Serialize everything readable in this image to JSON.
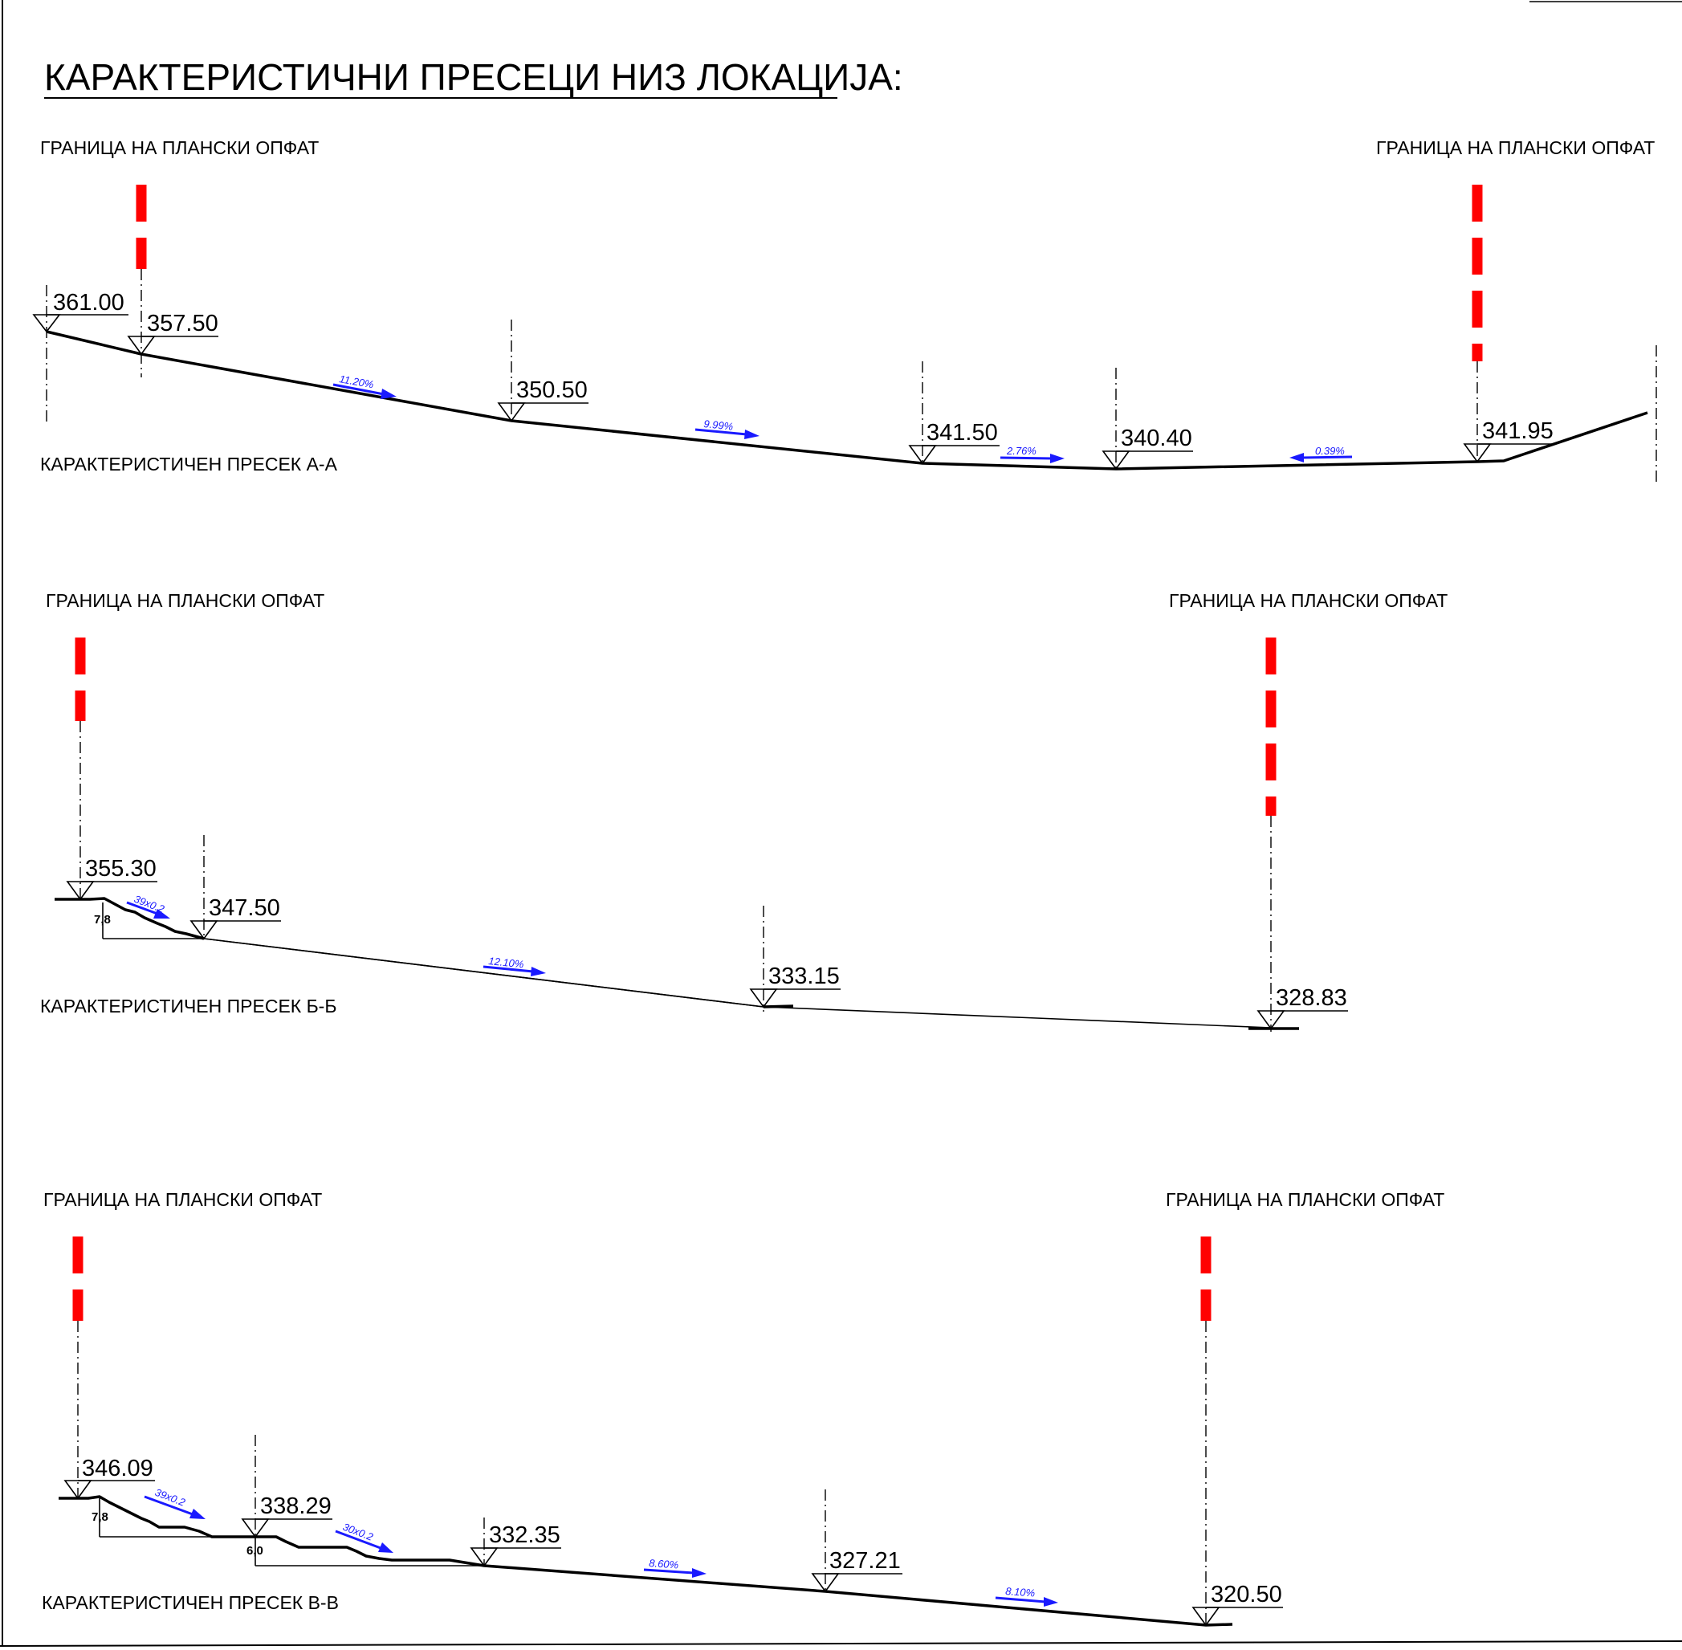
{
  "title": "КАРАКТЕРИСТИЧНИ ПРЕСЕЦИ НИЗ ЛОКАЦИЈА:",
  "sections": [
    {
      "name": "КАРАКТЕРИСТИЧЕН ПРЕСЕК  А-А",
      "boundary_left": "ГРАНИЦА НА ПЛАНСКИ ОПФАТ",
      "boundary_right": "ГРАНИЦА НА ПЛАНСКИ ОПФАТ",
      "elevations": [
        "361.00",
        "357.50",
        "350.50",
        "341.50",
        "340.40",
        "341.95"
      ],
      "slopes": [
        "11.20%",
        "9.99%",
        "2.76%",
        "0.39%"
      ]
    },
    {
      "name": "КАРАКТЕРИСТИЧЕН ПРЕСЕК  Б-Б",
      "boundary_left": "ГРАНИЦА НА ПЛАНСКИ ОПФАТ",
      "boundary_right": "ГРАНИЦА НА ПЛАНСКИ ОПФАТ",
      "elevations": [
        "355.30",
        "347.50",
        "333.15",
        "328.83"
      ],
      "slopes": [
        "39x0.2",
        "12.10%"
      ],
      "dims": [
        "7,8"
      ]
    },
    {
      "name": "КАРАКТЕРИСТИЧЕН ПРЕСЕК  В-В",
      "boundary_left": "ГРАНИЦА НА ПЛАНСКИ ОПФАТ",
      "boundary_right": "ГРАНИЦА НА ПЛАНСКИ ОПФАТ",
      "elevations": [
        "346.09",
        "338.29",
        "332.35",
        "327.21",
        "320.50"
      ],
      "slopes": [
        "39x0.2",
        "30x0.2",
        "8.60%",
        "8.10%"
      ],
      "dims": [
        "7,8",
        "6,0"
      ]
    }
  ],
  "colors": {
    "boundary": "#ff0000",
    "slope_arrow": "#1a1aff",
    "line": "#000000"
  }
}
